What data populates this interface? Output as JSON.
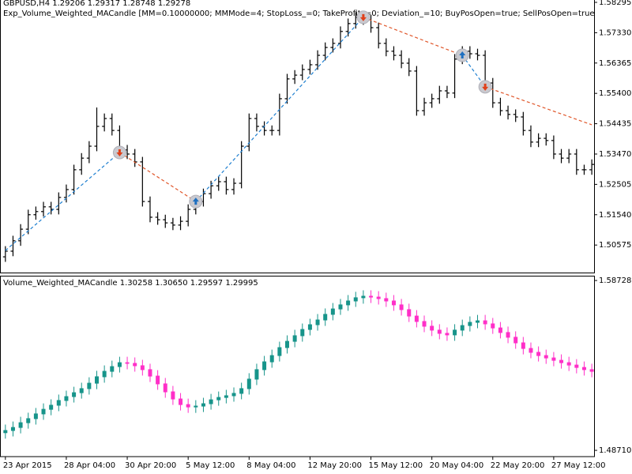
{
  "chart_data": [
    {
      "type": "ohlc",
      "title": "GBPUSD,H4  1.29206 1.29317 1.28748 1.29278",
      "subtitle": "Exp_Volume_Weighted_MACandle [MM=0.10000000; MMMode=4; StopLoss_=0; TakeProfit_=0; Deviation_=10; BuyPosOpen=true; SellPosOpen=true; BuyPosClose=true; SellPosClose=true]",
      "color": "#000000",
      "ylim": [
        1.497,
        1.5837
      ],
      "yticks": [
        1.58295,
        {
          "value": 1.5733,
          "label": "1.57330"
        },
        1.56365,
        {
          "value": 1.554,
          "label": "1.55400"
        },
        1.54435,
        {
          "value": 1.5347,
          "label": "1.53470"
        },
        1.52505,
        {
          "value": 1.5154,
          "label": "1.51540"
        },
        1.50575
      ],
      "open": [
        1.502,
        1.5038,
        1.5071,
        1.5108,
        1.5154,
        1.5164,
        1.5179,
        1.5171,
        1.5209,
        1.5234,
        1.5297,
        1.5334,
        1.5372,
        1.5435,
        1.546,
        1.5422,
        1.536,
        1.5347,
        1.5322,
        1.5196,
        1.5146,
        1.5138,
        1.5128,
        1.5121,
        1.5133,
        1.5171,
        1.5196,
        1.5221,
        1.5246,
        1.5259,
        1.5234,
        1.5254,
        1.5372,
        1.546,
        1.5435,
        1.5422,
        1.5422,
        1.5523,
        1.5586,
        1.5598,
        1.5616,
        1.5631,
        1.5661,
        1.5686,
        1.5699,
        1.5737,
        1.5762,
        1.5782,
        1.5774,
        1.5749,
        1.5699,
        1.5674,
        1.5661,
        1.5636,
        1.5611,
        1.5485,
        1.551,
        1.5523,
        1.5548,
        1.5541,
        1.5649,
        1.5674,
        1.5666,
        1.5661,
        1.5573,
        1.551,
        1.5485,
        1.5473,
        1.5465,
        1.5422,
        1.5385,
        1.5397,
        1.539,
        1.5347,
        1.5334,
        1.5347,
        1.5297,
        1.5297
      ],
      "high": [
        1.5054,
        1.5087,
        1.5124,
        1.517,
        1.518,
        1.5195,
        1.5195,
        1.5225,
        1.525,
        1.5313,
        1.535,
        1.5388,
        1.5495,
        1.5476,
        1.5476,
        1.5438,
        1.5376,
        1.5363,
        1.5338,
        1.5212,
        1.5162,
        1.5154,
        1.5144,
        1.5149,
        1.5187,
        1.5212,
        1.5237,
        1.5262,
        1.5275,
        1.5275,
        1.527,
        1.5388,
        1.5476,
        1.5476,
        1.5451,
        1.5438,
        1.5539,
        1.5602,
        1.5614,
        1.5632,
        1.5647,
        1.5677,
        1.5702,
        1.5715,
        1.5753,
        1.5778,
        1.5798,
        1.5798,
        1.579,
        1.5765,
        1.5715,
        1.569,
        1.5677,
        1.5652,
        1.5627,
        1.5526,
        1.5539,
        1.5564,
        1.5564,
        1.5665,
        1.569,
        1.569,
        1.5682,
        1.5677,
        1.5589,
        1.5526,
        1.5501,
        1.5489,
        1.5481,
        1.5438,
        1.5413,
        1.5413,
        1.5406,
        1.5363,
        1.5363,
        1.5363,
        1.5313,
        1.533
      ],
      "low": [
        1.5004,
        1.5022,
        1.5055,
        1.5092,
        1.5138,
        1.5148,
        1.5155,
        1.5155,
        1.5193,
        1.5218,
        1.5281,
        1.5318,
        1.5356,
        1.5419,
        1.5406,
        1.5344,
        1.5331,
        1.5306,
        1.518,
        1.513,
        1.5122,
        1.5112,
        1.5105,
        1.5105,
        1.5117,
        1.5155,
        1.518,
        1.5205,
        1.523,
        1.5218,
        1.5218,
        1.5238,
        1.5356,
        1.5419,
        1.5406,
        1.5406,
        1.5406,
        1.5507,
        1.557,
        1.5582,
        1.56,
        1.5615,
        1.5645,
        1.567,
        1.5683,
        1.5721,
        1.5746,
        1.5758,
        1.5733,
        1.5683,
        1.5658,
        1.5645,
        1.562,
        1.5595,
        1.5469,
        1.5469,
        1.5494,
        1.5507,
        1.5525,
        1.5525,
        1.5633,
        1.565,
        1.5645,
        1.5557,
        1.5494,
        1.5469,
        1.5457,
        1.5449,
        1.5406,
        1.5369,
        1.5369,
        1.5374,
        1.5331,
        1.5318,
        1.5318,
        1.5281,
        1.5281,
        1.5281
      ],
      "close": [
        1.5038,
        1.5071,
        1.5108,
        1.5154,
        1.5164,
        1.5179,
        1.5171,
        1.5209,
        1.5234,
        1.5297,
        1.5334,
        1.5372,
        1.5435,
        1.546,
        1.5422,
        1.536,
        1.5347,
        1.5322,
        1.5196,
        1.5146,
        1.5138,
        1.5128,
        1.5121,
        1.5133,
        1.5171,
        1.5196,
        1.5221,
        1.5246,
        1.5259,
        1.5234,
        1.5254,
        1.5372,
        1.546,
        1.5435,
        1.5422,
        1.5422,
        1.5523,
        1.5586,
        1.5598,
        1.5616,
        1.5631,
        1.5661,
        1.5686,
        1.5699,
        1.5737,
        1.5762,
        1.5782,
        1.5774,
        1.5749,
        1.5699,
        1.5674,
        1.5661,
        1.5636,
        1.5611,
        1.5485,
        1.551,
        1.5523,
        1.5548,
        1.5541,
        1.5649,
        1.5674,
        1.5666,
        1.5661,
        1.5573,
        1.551,
        1.5485,
        1.5473,
        1.5465,
        1.5422,
        1.5385,
        1.5397,
        1.539,
        1.5347,
        1.5334,
        1.5347,
        1.5297,
        1.5297,
        1.5314
      ],
      "trade_line": {
        "x": [
          0,
          15,
          25,
          47,
          60,
          63,
          77
        ],
        "values": [
          1.504,
          1.5352,
          1.5196,
          1.5782,
          1.5661,
          1.5561,
          1.544
        ],
        "colors": [
          "#1e7fd0",
          "#e0562a",
          "#1e7fd0",
          "#e0562a",
          "#1e7fd0",
          "#e0562a"
        ]
      },
      "signals": {
        "x": [
          15,
          25,
          47,
          60,
          63
        ],
        "values": [
          1.5352,
          1.5196,
          1.5782,
          1.5661,
          1.5561
        ],
        "side": [
          "sell",
          "buy",
          "sell",
          "buy",
          "sell"
        ],
        "buy_color": "#1e6fc0",
        "sell_color": "#e0401a"
      }
    },
    {
      "type": "candlestick",
      "title": "Volume_Weighted_MACandle 1.30258 1.30650 1.29597 1.29995",
      "up_color": "#17948a",
      "down_color": "#ff2fc8",
      "ylim": [
        1.4834,
        1.5901
      ],
      "yticks": [
        1.58728,
        {
          "value": 1.4871,
          "label": "1.48710"
        }
      ],
      "categories": [
        "23 Apr 2015",
        null,
        null,
        null,
        null,
        null,
        null,
        null,
        "28 Apr 04:00",
        null,
        null,
        null,
        null,
        null,
        null,
        null,
        "30 Apr 20:00",
        null,
        null,
        null,
        null,
        null,
        null,
        null,
        "5 May 12:00",
        null,
        null,
        null,
        null,
        null,
        null,
        null,
        "8 May 04:00",
        null,
        null,
        null,
        null,
        null,
        null,
        null,
        "12 May 20:00",
        null,
        null,
        null,
        null,
        null,
        null,
        null,
        "15 May 12:00",
        null,
        null,
        null,
        null,
        null,
        null,
        null,
        "20 May 04:00",
        null,
        null,
        null,
        null,
        null,
        null,
        null,
        "22 May 20:00",
        null,
        null,
        null,
        null,
        null,
        null,
        null,
        "27 May 12:00",
        null,
        null,
        null,
        null,
        null
      ],
      "open": [
        1.4975,
        1.4988,
        1.5006,
        1.5034,
        1.5058,
        1.5086,
        1.5113,
        1.5137,
        1.5165,
        1.5188,
        1.5211,
        1.5235,
        1.5267,
        1.5305,
        1.5337,
        1.5365,
        1.5388,
        1.5384,
        1.537,
        1.5347,
        1.5309,
        1.5263,
        1.5216,
        1.5174,
        1.5141,
        1.5127,
        1.5132,
        1.5146,
        1.5169,
        1.5183,
        1.5193,
        1.5207,
        1.5235,
        1.5291,
        1.5347,
        1.5393,
        1.543,
        1.5477,
        1.5514,
        1.5547,
        1.5584,
        1.5612,
        1.564,
        1.5673,
        1.5705,
        1.5729,
        1.5752,
        1.5771,
        1.578,
        1.5775,
        1.5766,
        1.5752,
        1.5729,
        1.5701,
        1.5663,
        1.5631,
        1.5603,
        1.558,
        1.5561,
        1.5552,
        1.558,
        1.5607,
        1.5626,
        1.5635,
        1.5617,
        1.5593,
        1.5566,
        1.5538,
        1.5505,
        1.5472,
        1.5449,
        1.543,
        1.5416,
        1.5402,
        1.5388,
        1.5374,
        1.536,
        1.5347
      ],
      "high": [
        1.5023,
        1.5041,
        1.5069,
        1.5093,
        1.5121,
        1.5148,
        1.5172,
        1.52,
        1.5223,
        1.5246,
        1.527,
        1.5302,
        1.534,
        1.5372,
        1.54,
        1.5423,
        1.5423,
        1.5419,
        1.5405,
        1.5382,
        1.5344,
        1.5298,
        1.5251,
        1.5209,
        1.5176,
        1.5167,
        1.5181,
        1.5204,
        1.5218,
        1.5228,
        1.5242,
        1.527,
        1.5326,
        1.5382,
        1.5428,
        1.5465,
        1.5512,
        1.5549,
        1.5582,
        1.5619,
        1.5647,
        1.5675,
        1.5708,
        1.574,
        1.5764,
        1.5787,
        1.5806,
        1.5815,
        1.5815,
        1.581,
        1.5801,
        1.5787,
        1.5764,
        1.5736,
        1.5698,
        1.5666,
        1.5638,
        1.5615,
        1.5596,
        1.5615,
        1.5642,
        1.5661,
        1.567,
        1.567,
        1.5652,
        1.5628,
        1.5601,
        1.5573,
        1.554,
        1.5507,
        1.5484,
        1.5465,
        1.5451,
        1.5437,
        1.5423,
        1.5409,
        1.5395,
        1.5382
      ],
      "low": [
        1.494,
        1.4953,
        1.4971,
        1.4999,
        1.5023,
        1.5051,
        1.5078,
        1.5102,
        1.513,
        1.5153,
        1.5176,
        1.52,
        1.5232,
        1.527,
        1.5302,
        1.533,
        1.5349,
        1.5335,
        1.5312,
        1.5274,
        1.5228,
        1.5181,
        1.5139,
        1.5106,
        1.5092,
        1.5092,
        1.5097,
        1.5111,
        1.5134,
        1.5148,
        1.5158,
        1.5172,
        1.52,
        1.5256,
        1.5312,
        1.5358,
        1.5395,
        1.5442,
        1.5479,
        1.5512,
        1.5549,
        1.5577,
        1.5605,
        1.5638,
        1.567,
        1.5694,
        1.5717,
        1.5736,
        1.574,
        1.5731,
        1.5717,
        1.5694,
        1.5666,
        1.5628,
        1.5596,
        1.5568,
        1.5545,
        1.5526,
        1.5517,
        1.5517,
        1.5545,
        1.5572,
        1.5591,
        1.5582,
        1.5558,
        1.5531,
        1.5503,
        1.547,
        1.5437,
        1.5414,
        1.5395,
        1.5381,
        1.5367,
        1.5353,
        1.5339,
        1.5325,
        1.5312,
        1.5302
      ],
      "close": [
        1.4988,
        1.5006,
        1.5034,
        1.5058,
        1.5086,
        1.5113,
        1.5137,
        1.5165,
        1.5188,
        1.5211,
        1.5235,
        1.5267,
        1.5305,
        1.5337,
        1.5365,
        1.5388,
        1.5384,
        1.537,
        1.5347,
        1.5309,
        1.5263,
        1.5216,
        1.5174,
        1.5141,
        1.5127,
        1.5132,
        1.5146,
        1.5169,
        1.5183,
        1.5193,
        1.5207,
        1.5235,
        1.5291,
        1.5347,
        1.5393,
        1.543,
        1.5477,
        1.5514,
        1.5547,
        1.5584,
        1.5612,
        1.564,
        1.5673,
        1.5705,
        1.5729,
        1.5752,
        1.5771,
        1.578,
        1.5775,
        1.5766,
        1.5752,
        1.5729,
        1.5701,
        1.5663,
        1.5631,
        1.5603,
        1.558,
        1.5561,
        1.5552,
        1.558,
        1.5607,
        1.5626,
        1.5635,
        1.5617,
        1.5593,
        1.5566,
        1.5538,
        1.5505,
        1.5472,
        1.5449,
        1.543,
        1.5416,
        1.5402,
        1.5388,
        1.5374,
        1.536,
        1.5347,
        1.5337
      ]
    }
  ]
}
